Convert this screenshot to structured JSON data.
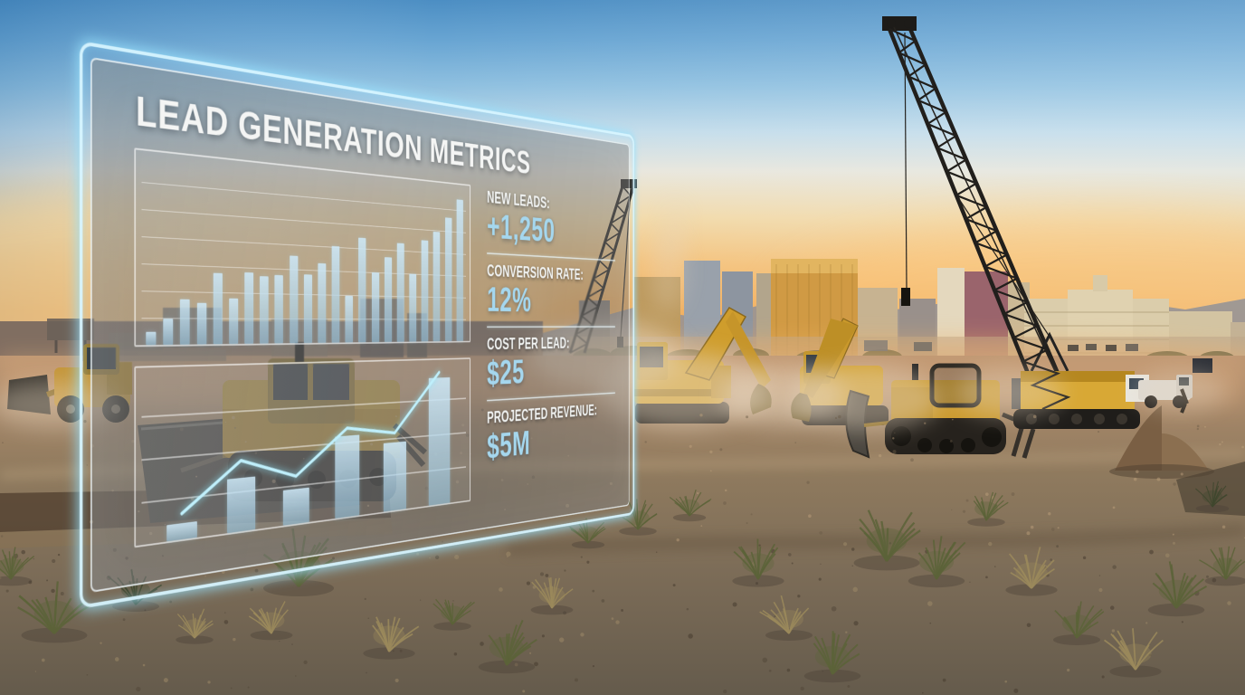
{
  "panel": {
    "title": "LEAD GENERATION METRICS",
    "stats": [
      {
        "id": "new-leads",
        "label": "NEW LEADS:",
        "value": "+1,250"
      },
      {
        "id": "conversion-rate",
        "label": "CONVERSION RATE:",
        "value": "12%"
      },
      {
        "id": "cost-per-lead",
        "label": "COST PER LEAD:",
        "value": "$25"
      },
      {
        "id": "projected-revenue",
        "label": "PROJECTED REVENUE:",
        "value": "$5M"
      }
    ],
    "accent_color": "#a5d7ee",
    "label_color": "#f2f4f3",
    "frame_glow_color": "#bfeaff"
  },
  "chart_data": [
    {
      "type": "bar",
      "title": "",
      "values": [
        7,
        14,
        25,
        23,
        40,
        26,
        41,
        39,
        40,
        52,
        41,
        48,
        59,
        29,
        65,
        44,
        54,
        63,
        44,
        66,
        72,
        82,
        95
      ],
      "ylim": [
        0,
        100
      ],
      "grid": true,
      "gridlines": 7,
      "bar_color": "#a9d4ea",
      "legend": "none"
    },
    {
      "type": "line+bar",
      "title": "",
      "bar_values": [
        10,
        34,
        23,
        55,
        48,
        92
      ],
      "line_values": [
        12,
        42,
        28,
        58,
        52,
        95
      ],
      "ylim": [
        0,
        100
      ],
      "grid": true,
      "gridlines": 4,
      "bar_color": "#a9d4ea",
      "line_color": "#bfeffb",
      "legend": "none"
    }
  ],
  "scene_palette": {
    "sky_top": "#4c8ec3",
    "sky_horizon": "#f2ab55",
    "ground": "#8f7a5e",
    "machinery_yellow": "#d2a02c",
    "hologram_glow": "#bfeaff"
  }
}
